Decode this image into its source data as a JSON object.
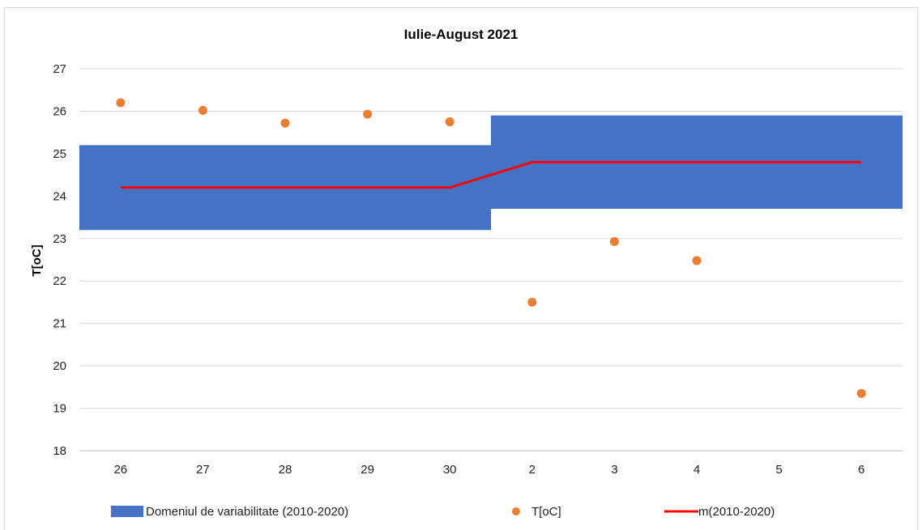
{
  "chart_data": {
    "type": "line",
    "title": "Iulie-August 2021",
    "xlabel": "",
    "ylabel": "T[oC]",
    "ylim": [
      18,
      27
    ],
    "yticks": [
      18,
      19,
      20,
      21,
      22,
      23,
      24,
      25,
      26,
      27
    ],
    "categories": [
      "26",
      "27",
      "28",
      "29",
      "30",
      "2",
      "3",
      "4",
      "5",
      "6"
    ],
    "grid": true,
    "legend_position": "bottom",
    "series": [
      {
        "name": "Domeniul de variabilitate (2010-2020)",
        "kind": "band",
        "color": "#4472C4",
        "lower": [
          23.2,
          23.2,
          23.2,
          23.2,
          23.2,
          23.7,
          23.7,
          23.7,
          23.7,
          23.7
        ],
        "upper": [
          25.2,
          25.2,
          25.2,
          25.2,
          25.2,
          25.9,
          25.9,
          25.9,
          25.9,
          25.9
        ]
      },
      {
        "name": "T[oC]",
        "kind": "scatter",
        "color": "#ED7D31",
        "values": [
          26.2,
          26.02,
          25.72,
          25.93,
          25.75,
          21.5,
          22.93,
          22.48,
          null,
          19.35
        ]
      },
      {
        "name": "m(2010-2020)",
        "kind": "line",
        "color": "#FF0000",
        "values": [
          24.2,
          24.2,
          24.2,
          24.2,
          24.2,
          24.8,
          24.8,
          24.8,
          24.8,
          24.8
        ]
      }
    ]
  }
}
